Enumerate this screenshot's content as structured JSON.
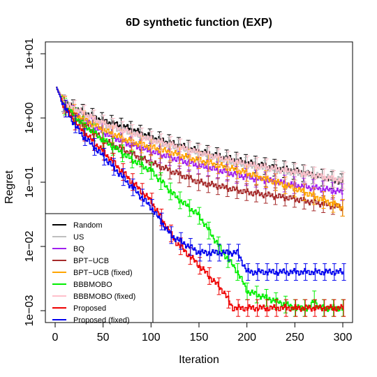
{
  "chart_data": {
    "type": "line",
    "title": "6D synthetic function (EXP)",
    "xlabel": "Iteration",
    "ylabel": "Regret",
    "xlim": [
      0,
      300
    ],
    "ylim": [
      0.001,
      10
    ],
    "log_y": true,
    "x_ticks": [
      0,
      50,
      100,
      150,
      200,
      250,
      300
    ],
    "x_tick_labels": [
      "0",
      "50",
      "100",
      "150",
      "200",
      "250",
      "300"
    ],
    "y_ticks": [
      0.001,
      0.01,
      0.1,
      1,
      10
    ],
    "y_tick_labels": [
      "1e−03",
      "1e−02",
      "1e−01",
      "1e+00",
      "1e+01"
    ],
    "grid": false,
    "legend_position": "bottom-left",
    "error_bars": true,
    "series": [
      {
        "name": "Random",
        "color": "#000000",
        "x": [
          1,
          10,
          25,
          50,
          75,
          100,
          150,
          200,
          250,
          300
        ],
        "values": [
          3.0,
          1.7,
          1.3,
          0.9,
          0.7,
          0.5,
          0.3,
          0.2,
          0.15,
          0.1
        ]
      },
      {
        "name": "US",
        "color": "#bebebe",
        "x": [
          1,
          10,
          25,
          50,
          75,
          100,
          150,
          200,
          250,
          300
        ],
        "values": [
          3.0,
          1.7,
          1.25,
          0.8,
          0.6,
          0.45,
          0.28,
          0.18,
          0.14,
          0.11
        ]
      },
      {
        "name": "BQ",
        "color": "#a020f0",
        "x": [
          1,
          10,
          25,
          50,
          75,
          100,
          150,
          200,
          250,
          300
        ],
        "values": [
          3.0,
          1.6,
          1.0,
          0.6,
          0.4,
          0.3,
          0.18,
          0.12,
          0.09,
          0.07
        ]
      },
      {
        "name": "BPT−UCB",
        "color": "#a52a2a",
        "x": [
          1,
          10,
          25,
          50,
          75,
          100,
          150,
          200,
          250,
          300
        ],
        "values": [
          3.0,
          1.6,
          0.9,
          0.45,
          0.3,
          0.2,
          0.1,
          0.07,
          0.055,
          0.04
        ]
      },
      {
        "name": "BPT−UCB (fixed)",
        "color": "#ffa500",
        "x": [
          1,
          10,
          25,
          50,
          75,
          100,
          150,
          200,
          250,
          300
        ],
        "values": [
          3.0,
          1.6,
          1.05,
          0.65,
          0.45,
          0.35,
          0.22,
          0.14,
          0.08,
          0.04
        ]
      },
      {
        "name": "BBBMOBO",
        "color": "#00ee00",
        "x": [
          1,
          10,
          25,
          50,
          75,
          100,
          125,
          150,
          175,
          190,
          200,
          225,
          250,
          265,
          270,
          275,
          300
        ],
        "values": [
          3.0,
          1.5,
          0.9,
          0.45,
          0.25,
          0.15,
          0.06,
          0.03,
          0.008,
          0.004,
          0.002,
          0.0015,
          0.0011,
          0.0011,
          0.0015,
          0.0011,
          0.0011
        ]
      },
      {
        "name": "BBBMOBO (fixed)",
        "color": "#ffc0cb",
        "x": [
          1,
          10,
          25,
          50,
          75,
          100,
          150,
          200,
          250,
          300
        ],
        "values": [
          3.0,
          1.65,
          1.28,
          0.82,
          0.62,
          0.46,
          0.29,
          0.19,
          0.145,
          0.105
        ]
      },
      {
        "name": "Proposed",
        "color": "#ee0000",
        "x": [
          1,
          10,
          25,
          50,
          75,
          100,
          125,
          150,
          175,
          185,
          190,
          200,
          210,
          300
        ],
        "values": [
          3.0,
          1.4,
          0.7,
          0.3,
          0.12,
          0.05,
          0.012,
          0.005,
          0.002,
          0.0011,
          0.0011,
          0.0011,
          0.0011,
          0.0011
        ]
      },
      {
        "name": "Proposed (fixed)",
        "color": "#0000ee",
        "x": [
          1,
          10,
          25,
          50,
          75,
          100,
          120,
          150,
          190,
          200,
          300
        ],
        "values": [
          3.0,
          1.4,
          0.6,
          0.25,
          0.1,
          0.04,
          0.015,
          0.008,
          0.008,
          0.004,
          0.004
        ]
      }
    ]
  }
}
